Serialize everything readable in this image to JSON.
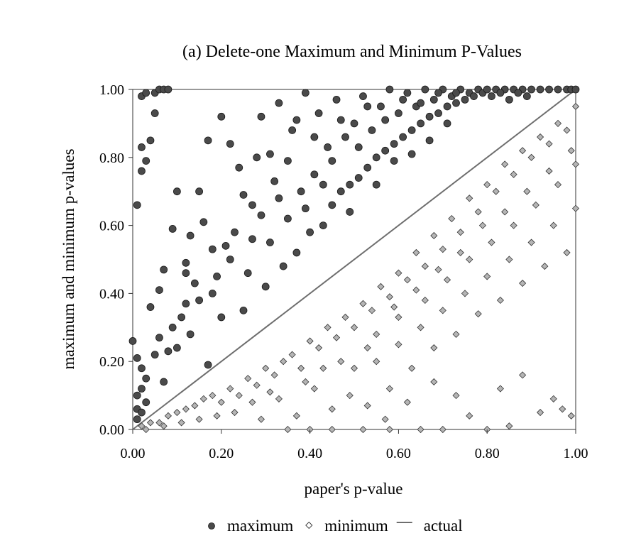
{
  "chart_data": {
    "type": "scatter",
    "title": "(a) Delete-one Maximum and Minimum P-Values",
    "xlabel": "paper's p-value",
    "ylabel": "maximum and minimum p-values",
    "xlim": [
      0,
      1
    ],
    "ylim": [
      0,
      1
    ],
    "x_ticks": [
      "0.00",
      "0.20",
      "0.40",
      "0.60",
      "0.80",
      "1.00"
    ],
    "y_ticks": [
      "0.00",
      "0.20",
      "0.40",
      "0.60",
      "0.80",
      "1.00"
    ],
    "grid": false,
    "legend_position": "bottom",
    "series": [
      {
        "name": "maximum",
        "marker": "circle",
        "color": "#4a4a4a",
        "points": [
          [
            0.01,
            0.03
          ],
          [
            0.01,
            0.06
          ],
          [
            0.01,
            0.1
          ],
          [
            0.02,
            0.05
          ],
          [
            0.02,
            0.12
          ],
          [
            0.02,
            0.18
          ],
          [
            0.03,
            0.08
          ],
          [
            0.03,
            0.15
          ],
          [
            0.0,
            0.26
          ],
          [
            0.01,
            0.21
          ],
          [
            0.01,
            0.66
          ],
          [
            0.02,
            0.76
          ],
          [
            0.03,
            0.79
          ],
          [
            0.02,
            0.83
          ],
          [
            0.04,
            0.85
          ],
          [
            0.05,
            0.93
          ],
          [
            0.02,
            0.98
          ],
          [
            0.03,
            0.99
          ],
          [
            0.05,
            0.99
          ],
          [
            0.06,
            1.0
          ],
          [
            0.07,
            1.0
          ],
          [
            0.08,
            1.0
          ],
          [
            0.04,
            0.36
          ],
          [
            0.06,
            0.41
          ],
          [
            0.1,
            0.7
          ],
          [
            0.13,
            0.57
          ],
          [
            0.12,
            0.49
          ],
          [
            0.09,
            0.3
          ],
          [
            0.05,
            0.22
          ],
          [
            0.06,
            0.27
          ],
          [
            0.07,
            0.14
          ],
          [
            0.08,
            0.23
          ],
          [
            0.1,
            0.24
          ],
          [
            0.11,
            0.33
          ],
          [
            0.12,
            0.37
          ],
          [
            0.13,
            0.28
          ],
          [
            0.14,
            0.43
          ],
          [
            0.15,
            0.38
          ],
          [
            0.16,
            0.61
          ],
          [
            0.17,
            0.85
          ],
          [
            0.17,
            0.19
          ],
          [
            0.18,
            0.4
          ],
          [
            0.19,
            0.45
          ],
          [
            0.2,
            0.33
          ],
          [
            0.21,
            0.54
          ],
          [
            0.22,
            0.5
          ],
          [
            0.23,
            0.58
          ],
          [
            0.24,
            0.77
          ],
          [
            0.25,
            0.35
          ],
          [
            0.26,
            0.46
          ],
          [
            0.27,
            0.66
          ],
          [
            0.28,
            0.8
          ],
          [
            0.29,
            0.92
          ],
          [
            0.3,
            0.42
          ],
          [
            0.31,
            0.55
          ],
          [
            0.32,
            0.73
          ],
          [
            0.33,
            0.96
          ],
          [
            0.34,
            0.48
          ],
          [
            0.35,
            0.62
          ],
          [
            0.36,
            0.88
          ],
          [
            0.37,
            0.52
          ],
          [
            0.38,
            0.7
          ],
          [
            0.39,
            0.99
          ],
          [
            0.4,
            0.58
          ],
          [
            0.41,
            0.75
          ],
          [
            0.42,
            0.93
          ],
          [
            0.43,
            0.6
          ],
          [
            0.44,
            0.83
          ],
          [
            0.45,
            0.66
          ],
          [
            0.46,
            0.97
          ],
          [
            0.47,
            0.7
          ],
          [
            0.48,
            0.86
          ],
          [
            0.49,
            0.72
          ],
          [
            0.5,
            0.9
          ],
          [
            0.51,
            0.74
          ],
          [
            0.52,
            0.98
          ],
          [
            0.53,
            0.77
          ],
          [
            0.54,
            0.88
          ],
          [
            0.55,
            0.8
          ],
          [
            0.56,
            0.95
          ],
          [
            0.57,
            0.82
          ],
          [
            0.58,
            1.0
          ],
          [
            0.59,
            0.84
          ],
          [
            0.6,
            0.93
          ],
          [
            0.61,
            0.86
          ],
          [
            0.62,
            0.99
          ],
          [
            0.63,
            0.88
          ],
          [
            0.64,
            0.95
          ],
          [
            0.65,
            0.9
          ],
          [
            0.66,
            1.0
          ],
          [
            0.67,
            0.92
          ],
          [
            0.68,
            0.97
          ],
          [
            0.69,
            0.93
          ],
          [
            0.7,
            1.0
          ],
          [
            0.71,
            0.95
          ],
          [
            0.72,
            0.98
          ],
          [
            0.73,
            0.96
          ],
          [
            0.74,
            1.0
          ],
          [
            0.75,
            0.97
          ],
          [
            0.76,
            0.99
          ],
          [
            0.77,
            0.98
          ],
          [
            0.78,
            1.0
          ],
          [
            0.79,
            0.99
          ],
          [
            0.8,
            1.0
          ],
          [
            0.82,
            1.0
          ],
          [
            0.84,
            1.0
          ],
          [
            0.86,
            1.0
          ],
          [
            0.88,
            1.0
          ],
          [
            0.9,
            1.0
          ],
          [
            0.92,
            1.0
          ],
          [
            0.94,
            1.0
          ],
          [
            0.96,
            1.0
          ],
          [
            0.98,
            1.0
          ],
          [
            0.99,
            1.0
          ],
          [
            1.0,
            1.0
          ],
          [
            0.81,
            0.98
          ],
          [
            0.83,
            0.99
          ],
          [
            0.85,
            0.97
          ],
          [
            0.87,
            0.99
          ],
          [
            0.89,
            0.98
          ],
          [
            0.07,
            0.47
          ],
          [
            0.09,
            0.59
          ],
          [
            0.12,
            0.46
          ],
          [
            0.15,
            0.7
          ],
          [
            0.18,
            0.53
          ],
          [
            0.2,
            0.92
          ],
          [
            0.22,
            0.84
          ],
          [
            0.25,
            0.69
          ],
          [
            0.27,
            0.56
          ],
          [
            0.29,
            0.63
          ],
          [
            0.31,
            0.81
          ],
          [
            0.33,
            0.68
          ],
          [
            0.35,
            0.79
          ],
          [
            0.37,
            0.91
          ],
          [
            0.39,
            0.65
          ],
          [
            0.41,
            0.86
          ],
          [
            0.43,
            0.72
          ],
          [
            0.45,
            0.79
          ],
          [
            0.47,
            0.91
          ],
          [
            0.49,
            0.64
          ],
          [
            0.51,
            0.83
          ],
          [
            0.53,
            0.95
          ],
          [
            0.55,
            0.72
          ],
          [
            0.57,
            0.91
          ],
          [
            0.59,
            0.79
          ],
          [
            0.61,
            0.97
          ],
          [
            0.63,
            0.81
          ],
          [
            0.65,
            0.96
          ],
          [
            0.67,
            0.85
          ],
          [
            0.69,
            0.99
          ],
          [
            0.71,
            0.9
          ],
          [
            0.73,
            0.99
          ]
        ]
      },
      {
        "name": "minimum",
        "marker": "diamond",
        "color": "#b5b5b5",
        "points": [
          [
            0.02,
            0.01
          ],
          [
            0.04,
            0.02
          ],
          [
            0.06,
            0.02
          ],
          [
            0.08,
            0.04
          ],
          [
            0.1,
            0.05
          ],
          [
            0.12,
            0.06
          ],
          [
            0.14,
            0.07
          ],
          [
            0.16,
            0.09
          ],
          [
            0.18,
            0.1
          ],
          [
            0.2,
            0.08
          ],
          [
            0.22,
            0.12
          ],
          [
            0.24,
            0.1
          ],
          [
            0.26,
            0.15
          ],
          [
            0.28,
            0.13
          ],
          [
            0.3,
            0.18
          ],
          [
            0.32,
            0.16
          ],
          [
            0.34,
            0.2
          ],
          [
            0.36,
            0.22
          ],
          [
            0.38,
            0.18
          ],
          [
            0.4,
            0.26
          ],
          [
            0.42,
            0.24
          ],
          [
            0.44,
            0.3
          ],
          [
            0.46,
            0.27
          ],
          [
            0.48,
            0.33
          ],
          [
            0.5,
            0.3
          ],
          [
            0.52,
            0.37
          ],
          [
            0.54,
            0.35
          ],
          [
            0.56,
            0.42
          ],
          [
            0.58,
            0.39
          ],
          [
            0.6,
            0.46
          ],
          [
            0.62,
            0.44
          ],
          [
            0.64,
            0.52
          ],
          [
            0.66,
            0.48
          ],
          [
            0.68,
            0.57
          ],
          [
            0.7,
            0.53
          ],
          [
            0.72,
            0.62
          ],
          [
            0.74,
            0.58
          ],
          [
            0.76,
            0.68
          ],
          [
            0.78,
            0.64
          ],
          [
            0.8,
            0.72
          ],
          [
            0.82,
            0.7
          ],
          [
            0.84,
            0.78
          ],
          [
            0.86,
            0.75
          ],
          [
            0.88,
            0.82
          ],
          [
            0.9,
            0.8
          ],
          [
            0.92,
            0.86
          ],
          [
            0.94,
            0.84
          ],
          [
            0.96,
            0.9
          ],
          [
            0.98,
            0.88
          ],
          [
            1.0,
            0.95
          ],
          [
            0.35,
            0.0
          ],
          [
            0.4,
            0.0
          ],
          [
            0.45,
            0.0
          ],
          [
            0.52,
            0.0
          ],
          [
            0.58,
            0.0
          ],
          [
            0.65,
            0.0
          ],
          [
            0.7,
            0.0
          ],
          [
            0.8,
            0.0
          ],
          [
            0.85,
            0.01
          ],
          [
            0.99,
            0.04
          ],
          [
            0.97,
            0.06
          ],
          [
            0.95,
            0.09
          ],
          [
            0.92,
            0.05
          ],
          [
            0.88,
            0.16
          ],
          [
            0.83,
            0.12
          ],
          [
            0.76,
            0.04
          ],
          [
            0.73,
            0.1
          ],
          [
            0.68,
            0.14
          ],
          [
            0.62,
            0.08
          ],
          [
            0.57,
            0.03
          ],
          [
            0.53,
            0.07
          ],
          [
            0.49,
            0.1
          ],
          [
            0.45,
            0.06
          ],
          [
            0.41,
            0.12
          ],
          [
            0.37,
            0.04
          ],
          [
            0.33,
            0.09
          ],
          [
            0.29,
            0.03
          ],
          [
            0.55,
            0.2
          ],
          [
            0.6,
            0.25
          ],
          [
            0.65,
            0.3
          ],
          [
            0.7,
            0.35
          ],
          [
            0.75,
            0.4
          ],
          [
            0.8,
            0.45
          ],
          [
            0.85,
            0.5
          ],
          [
            0.9,
            0.55
          ],
          [
            0.95,
            0.6
          ],
          [
            1.0,
            0.65
          ],
          [
            0.58,
            0.12
          ],
          [
            0.63,
            0.18
          ],
          [
            0.68,
            0.24
          ],
          [
            0.73,
            0.28
          ],
          [
            0.78,
            0.34
          ],
          [
            0.83,
            0.38
          ],
          [
            0.88,
            0.43
          ],
          [
            0.93,
            0.48
          ],
          [
            0.98,
            0.52
          ],
          [
            0.5,
            0.18
          ],
          [
            0.55,
            0.28
          ],
          [
            0.6,
            0.33
          ],
          [
            0.66,
            0.38
          ],
          [
            0.71,
            0.44
          ],
          [
            0.76,
            0.5
          ],
          [
            0.81,
            0.55
          ],
          [
            0.86,
            0.6
          ],
          [
            0.91,
            0.66
          ],
          [
            0.96,
            0.72
          ],
          [
            1.0,
            0.78
          ],
          [
            0.47,
            0.2
          ],
          [
            0.53,
            0.24
          ],
          [
            0.59,
            0.36
          ],
          [
            0.64,
            0.41
          ],
          [
            0.69,
            0.47
          ],
          [
            0.74,
            0.52
          ],
          [
            0.79,
            0.6
          ],
          [
            0.84,
            0.64
          ],
          [
            0.89,
            0.7
          ],
          [
            0.94,
            0.76
          ],
          [
            0.99,
            0.82
          ],
          [
            0.43,
            0.18
          ],
          [
            0.39,
            0.14
          ],
          [
            0.31,
            0.11
          ],
          [
            0.27,
            0.08
          ],
          [
            0.23,
            0.05
          ],
          [
            0.19,
            0.04
          ],
          [
            0.15,
            0.03
          ],
          [
            0.11,
            0.02
          ],
          [
            0.07,
            0.01
          ],
          [
            0.03,
            0.0
          ]
        ]
      },
      {
        "name": "actual",
        "marker": "line",
        "color": "#6e6e6e",
        "points": [
          [
            0,
            0
          ],
          [
            1,
            1
          ]
        ]
      }
    ]
  }
}
